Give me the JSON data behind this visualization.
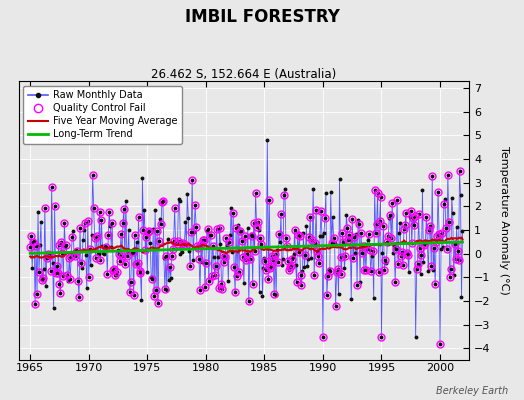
{
  "title": "IMBIL FORESTRY",
  "subtitle": "26.462 S, 152.664 E (Australia)",
  "ylabel": "Temperature Anomaly (°C)",
  "credit": "Berkeley Earth",
  "xlim": [
    1964.0,
    2002.5
  ],
  "ylim": [
    -4.5,
    7.3
  ],
  "yticks": [
    -4,
    -3,
    -2,
    -1,
    0,
    1,
    2,
    3,
    4,
    5,
    6,
    7
  ],
  "xticks": [
    1965,
    1970,
    1975,
    1980,
    1985,
    1990,
    1995,
    2000
  ],
  "bg_color": "#e8e8e8",
  "plot_bg_color": "#e8e8e8",
  "raw_line_color": "#5555ff",
  "raw_dot_color": "#111111",
  "qc_color": "#ff00ff",
  "moving_avg_color": "#cc0000",
  "trend_color": "#00bb00",
  "seed": 77
}
